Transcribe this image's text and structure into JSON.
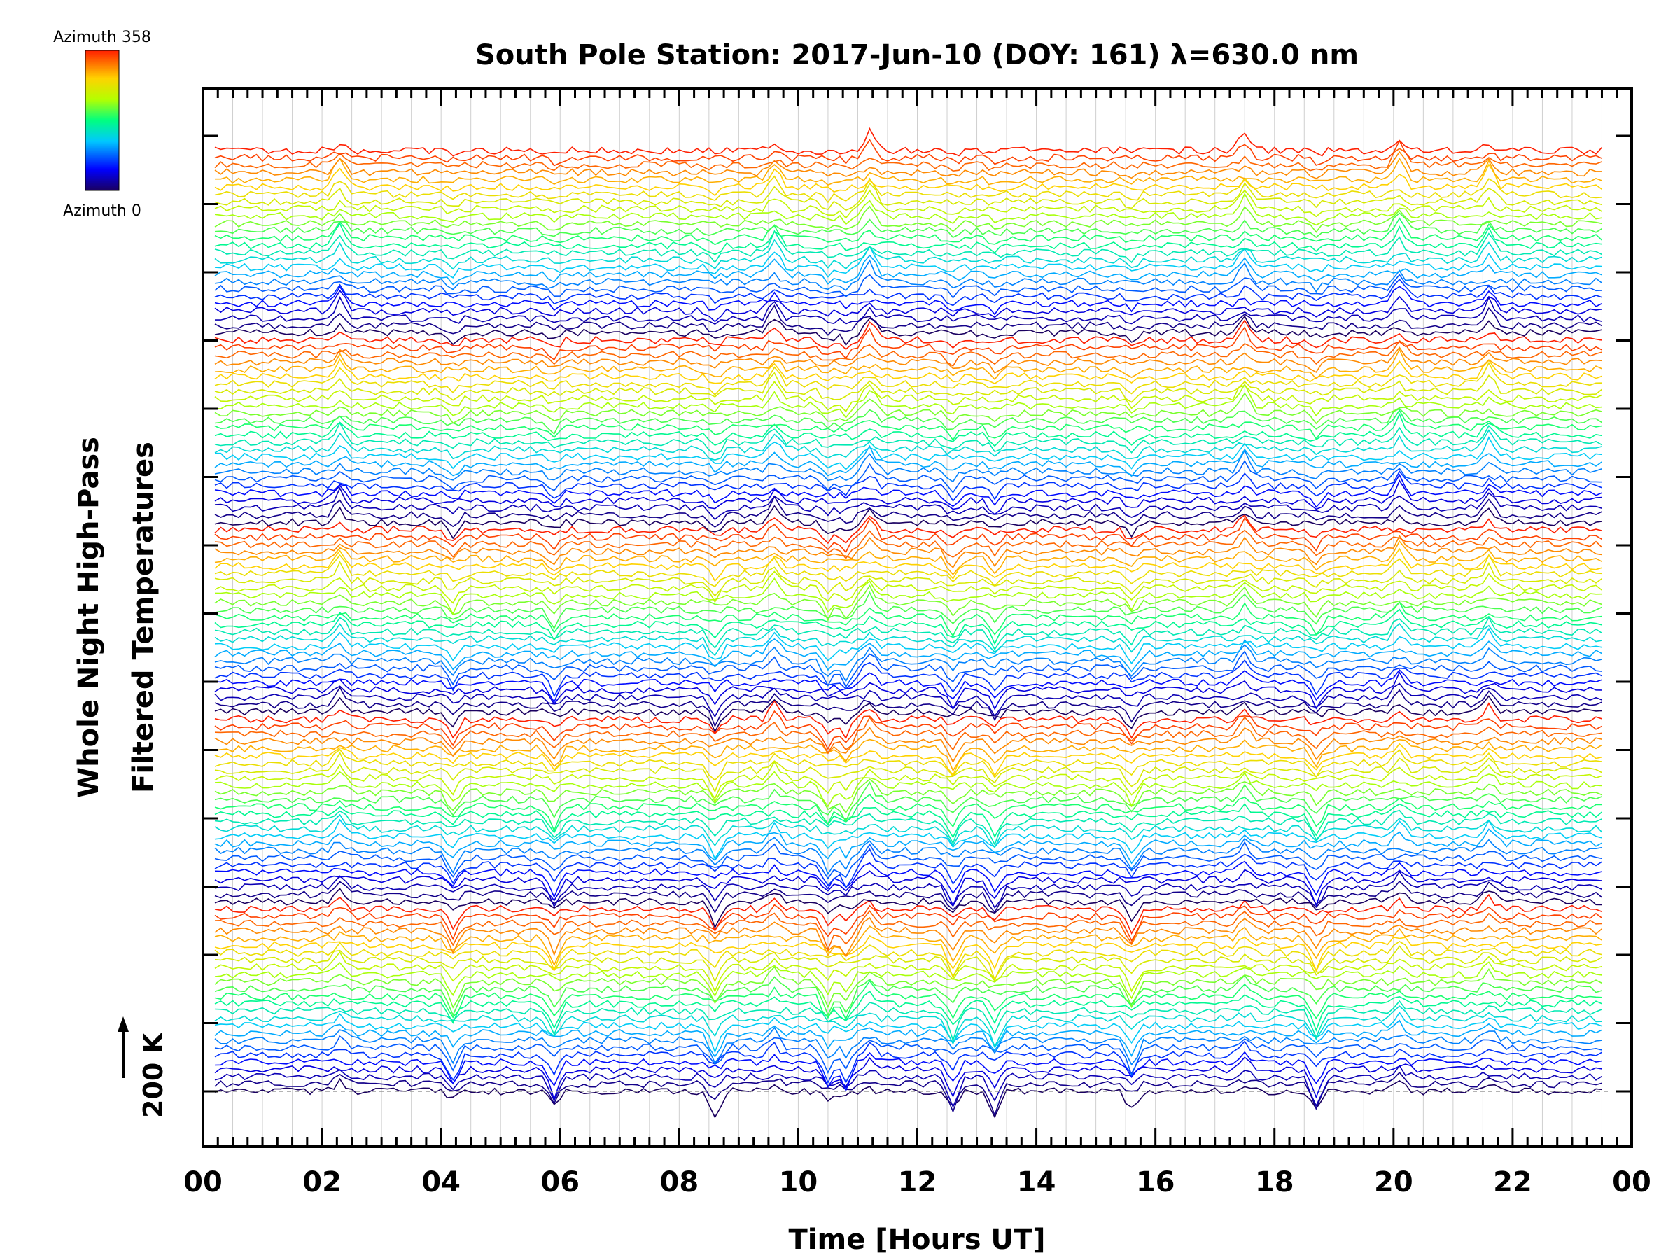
{
  "chart_data": {
    "type": "line",
    "title": "South Pole Station: 2017-Jun-10 (DOY: 161) λ=630.0 nm",
    "xlabel": "Time [Hours UT]",
    "ylabel_line1": "Whole Night High-Pass",
    "ylabel_line2": "Filtered Temperatures",
    "scale_label": "200 K",
    "x_ticks": [
      "00",
      "02",
      "04",
      "06",
      "08",
      "10",
      "12",
      "14",
      "16",
      "18",
      "20",
      "22",
      "00"
    ],
    "xlim": [
      0,
      24
    ],
    "data_xrange": [
      0.2,
      23.5
    ],
    "grid": true,
    "n_stacked_series": 130,
    "series_offset_K": 100,
    "colorbar": {
      "colormap": "rainbow",
      "top_label": "Azimuth  358",
      "bottom_label": "Azimuth  0",
      "min_azimuth": 0,
      "max_azimuth": 358
    },
    "notable_events_UT": [
      {
        "time": 2.3,
        "description": "peak"
      },
      {
        "time": 4.2,
        "description": "dip"
      },
      {
        "time": 5.9,
        "description": "dip"
      },
      {
        "time": 8.6,
        "description": "dip"
      },
      {
        "time": 9.6,
        "description": "peak"
      },
      {
        "time": 10.5,
        "description": "dip"
      },
      {
        "time": 10.8,
        "description": "dip"
      },
      {
        "time": 11.2,
        "description": "peak"
      },
      {
        "time": 12.6,
        "description": "dip"
      },
      {
        "time": 13.3,
        "description": "dip"
      },
      {
        "time": 15.6,
        "description": "dip"
      },
      {
        "time": 17.5,
        "description": "peak"
      },
      {
        "time": 18.7,
        "description": "dip"
      },
      {
        "time": 20.1,
        "description": "peak"
      },
      {
        "time": 21.6,
        "description": "peak"
      }
    ]
  }
}
